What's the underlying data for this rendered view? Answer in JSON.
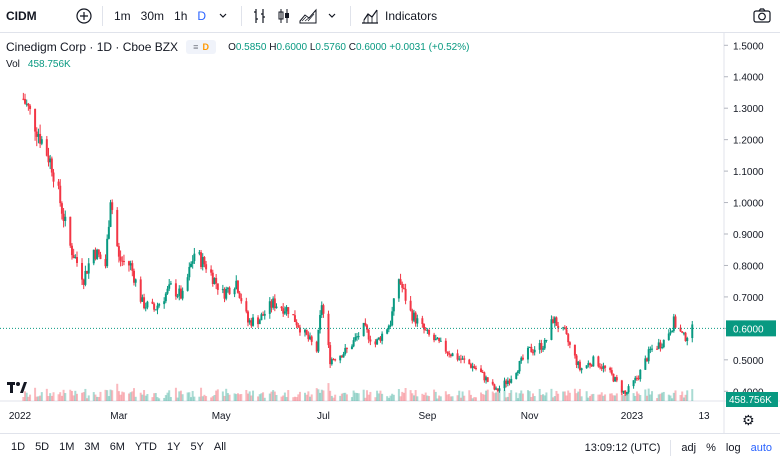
{
  "toolbar": {
    "symbol": "CIDM",
    "intervals": [
      "1m",
      "30m",
      "1h",
      "D"
    ],
    "active_interval": "D",
    "indicators_label": "Indicators"
  },
  "legend": {
    "title": "Cinedigm Corp · 1D · Cboe BZX",
    "ohlc": {
      "o_label": "O",
      "o": "0.5850",
      "h_label": "H",
      "h": "0.6000",
      "l_label": "L",
      "l": "0.5760",
      "c_label": "C",
      "c": "0.6000",
      "change": "+0.0031 (+0.52%)"
    },
    "vol_label": "Vol",
    "vol_value": "458.756K"
  },
  "price_axis": {
    "ticks": [
      "1.5000",
      "1.4000",
      "1.3000",
      "1.2000",
      "1.1000",
      "1.0000",
      "0.9000",
      "0.8000",
      "0.7000",
      "0.6000",
      "0.5000",
      "0.4000"
    ],
    "current_price": "0.6000",
    "volume_badge": "458.756K"
  },
  "time_axis": {
    "labels": [
      "2022",
      "Mar",
      "May",
      "Jul",
      "Sep",
      "Nov",
      "2023",
      "13"
    ]
  },
  "bottombar": {
    "ranges": [
      "1D",
      "5D",
      "1M",
      "3M",
      "6M",
      "YTD",
      "1Y",
      "5Y",
      "All"
    ],
    "clock": "13:09:12 (UTC)",
    "adj": "adj",
    "percent": "%",
    "log": "log",
    "auto": "auto"
  },
  "colors": {
    "up": "#089981",
    "down": "#f23645",
    "accent": "#2962ff"
  },
  "chart_data": {
    "type": "candlestick",
    "ylim": [
      0.35,
      1.52
    ],
    "x_labels": [
      "2022",
      "Mar",
      "May",
      "Jul",
      "Sep",
      "Nov",
      "2023",
      "13"
    ],
    "anchors": [
      {
        "x": "2022-01-03",
        "y": 1.33
      },
      {
        "x": "2022-01-10",
        "y": 1.25
      },
      {
        "x": "2022-01-20",
        "y": 1.12
      },
      {
        "x": "2022-01-31",
        "y": 0.86
      },
      {
        "x": "2022-02-08",
        "y": 0.76
      },
      {
        "x": "2022-02-14",
        "y": 0.85
      },
      {
        "x": "2022-02-21",
        "y": 0.8
      },
      {
        "x": "2022-02-24",
        "y": 1.02
      },
      {
        "x": "2022-03-01",
        "y": 0.82
      },
      {
        "x": "2022-03-08",
        "y": 0.8
      },
      {
        "x": "2022-03-15",
        "y": 0.68
      },
      {
        "x": "2022-03-22",
        "y": 0.66
      },
      {
        "x": "2022-04-01",
        "y": 0.73
      },
      {
        "x": "2022-04-08",
        "y": 0.7
      },
      {
        "x": "2022-04-15",
        "y": 0.84
      },
      {
        "x": "2022-04-22",
        "y": 0.8
      },
      {
        "x": "2022-05-02",
        "y": 0.71
      },
      {
        "x": "2022-05-10",
        "y": 0.75
      },
      {
        "x": "2022-05-17",
        "y": 0.62
      },
      {
        "x": "2022-05-24",
        "y": 0.63
      },
      {
        "x": "2022-06-01",
        "y": 0.68
      },
      {
        "x": "2022-06-10",
        "y": 0.66
      },
      {
        "x": "2022-06-20",
        "y": 0.58
      },
      {
        "x": "2022-06-27",
        "y": 0.53
      },
      {
        "x": "2022-06-30",
        "y": 0.68
      },
      {
        "x": "2022-07-05",
        "y": 0.5
      },
      {
        "x": "2022-07-15",
        "y": 0.53
      },
      {
        "x": "2022-07-25",
        "y": 0.6
      },
      {
        "x": "2022-08-01",
        "y": 0.55
      },
      {
        "x": "2022-08-10",
        "y": 0.62
      },
      {
        "x": "2022-08-15",
        "y": 0.76
      },
      {
        "x": "2022-08-22",
        "y": 0.65
      },
      {
        "x": "2022-09-01",
        "y": 0.58
      },
      {
        "x": "2022-09-15",
        "y": 0.52
      },
      {
        "x": "2022-10-01",
        "y": 0.47
      },
      {
        "x": "2022-10-12",
        "y": 0.4
      },
      {
        "x": "2022-10-20",
        "y": 0.44
      },
      {
        "x": "2022-11-01",
        "y": 0.53
      },
      {
        "x": "2022-11-10",
        "y": 0.55
      },
      {
        "x": "2022-11-15",
        "y": 0.63
      },
      {
        "x": "2022-11-22",
        "y": 0.58
      },
      {
        "x": "2022-12-01",
        "y": 0.47
      },
      {
        "x": "2022-12-10",
        "y": 0.5
      },
      {
        "x": "2022-12-20",
        "y": 0.45
      },
      {
        "x": "2022-12-28",
        "y": 0.39
      },
      {
        "x": "2023-01-05",
        "y": 0.45
      },
      {
        "x": "2023-01-12",
        "y": 0.53
      },
      {
        "x": "2023-01-20",
        "y": 0.56
      },
      {
        "x": "2023-01-26",
        "y": 0.62
      },
      {
        "x": "2023-02-01",
        "y": 0.57
      },
      {
        "x": "2023-02-07",
        "y": 0.6
      }
    ]
  }
}
